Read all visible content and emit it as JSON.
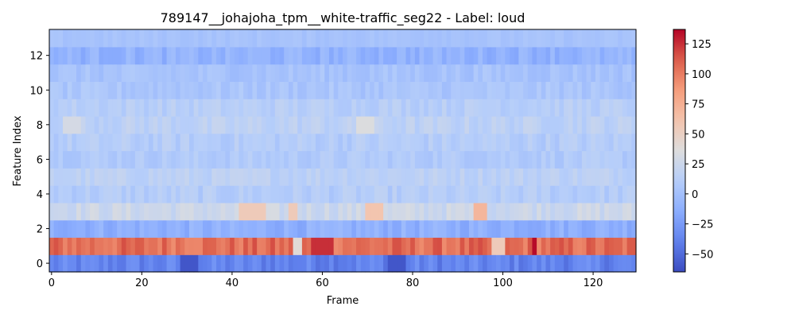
{
  "chart_data": {
    "type": "heatmap",
    "title": "789147__johajoha_tpm__white-traffic_seg22 - Label: loud",
    "xlabel": "Frame",
    "ylabel": "Feature Index",
    "n_frames": 130,
    "n_features": 14,
    "xlim": [
      -0.5,
      129.5
    ],
    "ylim": [
      -0.5,
      13.5
    ],
    "x_ticks": [
      0,
      20,
      40,
      60,
      80,
      100,
      120
    ],
    "y_ticks": [
      0,
      2,
      4,
      6,
      8,
      10,
      12
    ],
    "colormap": "coolwarm",
    "color_range": [
      -65,
      137
    ],
    "colorbar_ticks": [
      -50,
      -25,
      0,
      25,
      50,
      75,
      100,
      125
    ],
    "colorbar_tick_labels": [
      "−50",
      "−25",
      "0",
      "25",
      "50",
      "75",
      "100",
      "125"
    ],
    "feature_mean_values": [
      -38,
      105,
      -12,
      25,
      10,
      15,
      8,
      10,
      15,
      12,
      4,
      2,
      -10,
      2
    ],
    "highlights": [
      {
        "feature": 1,
        "frames": [
          58,
          59,
          60,
          61,
          62
        ],
        "value": 125
      },
      {
        "feature": 1,
        "frames": [
          107
        ],
        "value": 135
      },
      {
        "feature": 1,
        "frames": [
          54,
          55
        ],
        "value": 40
      },
      {
        "feature": 1,
        "frames": [
          98,
          99,
          100
        ],
        "value": 55
      },
      {
        "feature": 0,
        "frames": [
          29,
          30,
          31,
          32
        ],
        "value": -60
      },
      {
        "feature": 0,
        "frames": [
          75,
          76,
          77,
          78
        ],
        "value": -60
      },
      {
        "feature": 3,
        "frames": [
          42,
          43,
          44,
          45,
          46,
          47
        ],
        "value": 55
      },
      {
        "feature": 3,
        "frames": [
          53,
          54
        ],
        "value": 55
      },
      {
        "feature": 3,
        "frames": [
          70,
          71,
          72,
          73
        ],
        "value": 60
      },
      {
        "feature": 3,
        "frames": [
          94,
          95,
          96
        ],
        "value": 70
      },
      {
        "feature": 8,
        "frames": [
          68,
          69,
          70,
          71
        ],
        "value": 35
      },
      {
        "feature": 8,
        "frames": [
          3,
          4,
          5,
          6
        ],
        "value": 30
      }
    ],
    "grid": false
  }
}
